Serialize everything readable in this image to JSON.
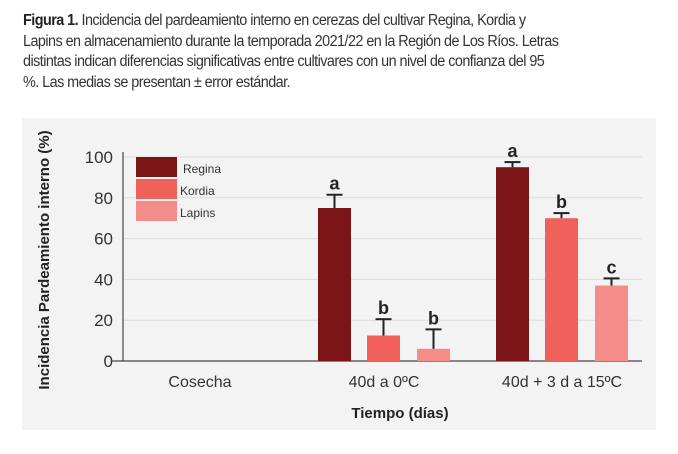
{
  "caption": {
    "label": "Figura 1.",
    "lines": [
      " Incidencia del pardeamiento interno en cerezas del cultivar Regina, Kordia y",
      "Lapins en almacenamiento durante la temporada 2021/22 en la Región de Los Ríos. Letras",
      "distintas indican diferencias significativas entre cultivares con un nivel de confianza del 95",
      "%. Las medias se presentan ± error estándar."
    ]
  },
  "chart_data": {
    "type": "bar",
    "xlabel": "Tiempo (días)",
    "ylabel": "Incidencia Pardeamiento interno (%)",
    "ylim": [
      0,
      100
    ],
    "yticks": [
      "0",
      "20",
      "40",
      "60",
      "80",
      "100"
    ],
    "grid": true,
    "legend_position": "top-left",
    "categories": [
      "Cosecha",
      "40d a 0ºC",
      "40d + 3 d a 15ºC"
    ],
    "series": [
      {
        "name": "Regina",
        "color": "#7b1416",
        "values": [
          0,
          75,
          95
        ],
        "errors": [
          0,
          6.5,
          2.5
        ],
        "letters": [
          "",
          "a",
          "a"
        ]
      },
      {
        "name": "Kordia",
        "color": "#f0615c",
        "values": [
          0,
          12.5,
          70
        ],
        "errors": [
          0,
          8,
          2.5
        ],
        "letters": [
          "",
          "b",
          "b"
        ]
      },
      {
        "name": "Lapins",
        "color": "#f48d8a",
        "values": [
          0,
          6,
          37
        ],
        "errors": [
          0,
          9.5,
          3.5
        ],
        "letters": [
          "",
          "b",
          "c"
        ]
      }
    ]
  }
}
